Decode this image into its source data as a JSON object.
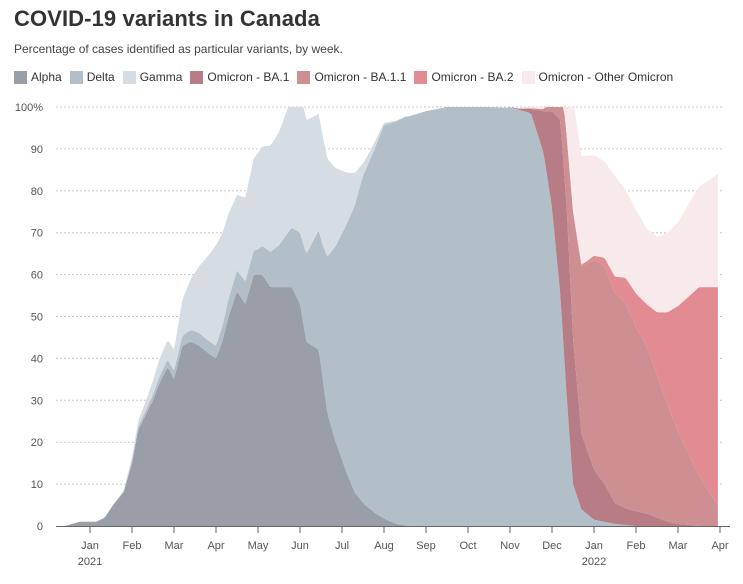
{
  "chart_data": {
    "type": "area",
    "title": "COVID-19 variants in Canada",
    "subtitle": "Percentage of cases identified as particular variants, by week.",
    "xlabel": "",
    "ylabel": "",
    "ylim": [
      0,
      100
    ],
    "xlim": [
      -0.9,
      14.95
    ],
    "y_ticks": [
      0,
      10,
      20,
      30,
      40,
      50,
      60,
      70,
      80,
      90,
      100
    ],
    "y_tick_labels": [
      "0",
      "10",
      "20",
      "30",
      "40",
      "50",
      "60",
      "70",
      "80",
      "90",
      "100%"
    ],
    "x_ticks": [
      {
        "t": 0,
        "label": "Jan",
        "year": "2021"
      },
      {
        "t": 1,
        "label": "Feb"
      },
      {
        "t": 2,
        "label": "Mar"
      },
      {
        "t": 3,
        "label": "Apr"
      },
      {
        "t": 4,
        "label": "May"
      },
      {
        "t": 5,
        "label": "Jun"
      },
      {
        "t": 6,
        "label": "Jul"
      },
      {
        "t": 7,
        "label": "Aug"
      },
      {
        "t": 8,
        "label": "Sep"
      },
      {
        "t": 9,
        "label": "Oct"
      },
      {
        "t": 10,
        "label": "Nov"
      },
      {
        "t": 11,
        "label": "Dec"
      },
      {
        "t": 12,
        "label": "Jan",
        "year": "2022"
      },
      {
        "t": 13,
        "label": "Feb"
      },
      {
        "t": 14,
        "label": "Mar"
      },
      {
        "t": 15,
        "label": "Apr"
      }
    ],
    "time_unit": "months since Jan 2021",
    "stacking": "cumulative",
    "series": [
      {
        "name": "Alpha",
        "color": "#9a9ea6",
        "points": [
          [
            -0.9,
            0
          ],
          [
            -0.6,
            0
          ],
          [
            -0.25,
            1
          ],
          [
            0.15,
            1
          ],
          [
            0.35,
            2
          ],
          [
            0.55,
            5
          ],
          [
            0.8,
            8
          ],
          [
            1.0,
            15
          ],
          [
            1.15,
            23
          ],
          [
            1.3,
            26
          ],
          [
            1.5,
            30
          ],
          [
            1.65,
            34
          ],
          [
            1.85,
            38
          ],
          [
            2.0,
            35
          ],
          [
            2.2,
            43
          ],
          [
            2.4,
            44
          ],
          [
            2.6,
            43
          ],
          [
            2.85,
            41
          ],
          [
            3.0,
            40
          ],
          [
            3.15,
            44
          ],
          [
            3.3,
            50
          ],
          [
            3.5,
            56
          ],
          [
            3.7,
            53
          ],
          [
            3.9,
            60
          ],
          [
            4.1,
            60
          ],
          [
            4.3,
            57
          ],
          [
            4.6,
            57
          ],
          [
            4.8,
            57
          ],
          [
            5.0,
            53
          ],
          [
            5.15,
            44
          ],
          [
            5.3,
            43
          ],
          [
            5.45,
            42
          ],
          [
            5.65,
            27
          ],
          [
            5.85,
            20
          ],
          [
            6.1,
            13
          ],
          [
            6.3,
            8
          ],
          [
            6.55,
            5
          ],
          [
            6.8,
            3
          ],
          [
            7.05,
            1.5
          ],
          [
            7.3,
            0.5
          ],
          [
            7.6,
            0
          ],
          [
            14.95,
            0
          ]
        ]
      },
      {
        "name": "Delta",
        "color": "#b2bec8",
        "points": [
          [
            -0.9,
            0
          ],
          [
            0.5,
            0
          ],
          [
            1.0,
            0.5
          ],
          [
            1.6,
            1.5
          ],
          [
            2.0,
            2
          ],
          [
            2.5,
            3
          ],
          [
            3.0,
            3
          ],
          [
            3.5,
            5
          ],
          [
            4.0,
            6
          ],
          [
            4.5,
            10
          ],
          [
            5.0,
            17
          ],
          [
            5.5,
            30
          ],
          [
            6.0,
            54
          ],
          [
            6.5,
            78
          ],
          [
            7.0,
            94
          ],
          [
            7.5,
            97.5
          ],
          [
            8.0,
            99
          ],
          [
            8.5,
            100
          ],
          [
            9.5,
            100
          ],
          [
            10.1,
            99.7
          ],
          [
            10.5,
            98.5
          ],
          [
            10.8,
            89
          ],
          [
            11.0,
            76
          ],
          [
            11.2,
            55
          ],
          [
            11.35,
            31
          ],
          [
            11.5,
            10
          ],
          [
            11.7,
            4
          ],
          [
            12.0,
            1.5
          ],
          [
            12.5,
            0.5
          ],
          [
            13.0,
            0
          ],
          [
            14.95,
            0
          ]
        ]
      },
      {
        "name": "Gamma",
        "color": "#d5dde3",
        "points": [
          [
            -0.9,
            0
          ],
          [
            0.8,
            0
          ],
          [
            1.0,
            1
          ],
          [
            1.3,
            2
          ],
          [
            1.6,
            4
          ],
          [
            2.0,
            5
          ],
          [
            2.5,
            14
          ],
          [
            3.0,
            24
          ],
          [
            3.5,
            18
          ],
          [
            4.0,
            23
          ],
          [
            4.5,
            27
          ],
          [
            5.0,
            34
          ],
          [
            5.5,
            27
          ],
          [
            6.0,
            15
          ],
          [
            6.5,
            3
          ],
          [
            7.0,
            0.5
          ],
          [
            7.5,
            0
          ],
          [
            14.95,
            0
          ]
        ]
      },
      {
        "name": "Omicron - BA.1",
        "color": "#b87c86",
        "points": [
          [
            -0.9,
            0
          ],
          [
            9.8,
            0
          ],
          [
            10.2,
            0.2
          ],
          [
            10.5,
            1
          ],
          [
            10.8,
            10
          ],
          [
            11.0,
            23
          ],
          [
            11.2,
            42
          ],
          [
            11.35,
            45
          ],
          [
            11.5,
            35
          ],
          [
            11.7,
            18
          ],
          [
            12.0,
            12
          ],
          [
            12.25,
            9
          ],
          [
            12.5,
            5
          ],
          [
            12.75,
            4
          ],
          [
            13.0,
            3.5
          ],
          [
            13.25,
            3
          ],
          [
            13.5,
            2
          ],
          [
            13.75,
            1
          ],
          [
            14.0,
            0.5
          ],
          [
            14.5,
            0
          ],
          [
            14.95,
            0
          ]
        ]
      },
      {
        "name": "Omicron - BA.1.1",
        "color": "#cd8f91",
        "points": [
          [
            -0.9,
            0
          ],
          [
            10.1,
            0
          ],
          [
            10.5,
            0.2
          ],
          [
            10.8,
            0.5
          ],
          [
            11.0,
            3
          ],
          [
            11.2,
            12
          ],
          [
            11.35,
            17
          ],
          [
            11.5,
            30
          ],
          [
            11.7,
            40
          ],
          [
            12.0,
            50
          ],
          [
            12.25,
            52
          ],
          [
            12.5,
            50
          ],
          [
            12.75,
            49
          ],
          [
            13.0,
            44
          ],
          [
            13.25,
            40
          ],
          [
            13.5,
            34
          ],
          [
            13.75,
            28
          ],
          [
            14.0,
            22
          ],
          [
            14.5,
            12
          ],
          [
            14.95,
            5
          ]
        ]
      },
      {
        "name": "Omicron - BA.2",
        "color": "#e38b92",
        "points": [
          [
            -0.9,
            0
          ],
          [
            11.3,
            0
          ],
          [
            11.5,
            0.2
          ],
          [
            11.8,
            0.5
          ],
          [
            12.0,
            1
          ],
          [
            12.25,
            2
          ],
          [
            12.5,
            4
          ],
          [
            12.75,
            6
          ],
          [
            13.0,
            8
          ],
          [
            13.25,
            10
          ],
          [
            13.5,
            15
          ],
          [
            13.75,
            22
          ],
          [
            14.0,
            30
          ],
          [
            14.5,
            45
          ],
          [
            14.95,
            52
          ]
        ]
      },
      {
        "name": "Omicron - Other Omicron",
        "color": "#f8e9ea",
        "points": [
          [
            -0.9,
            0
          ],
          [
            10.1,
            0
          ],
          [
            10.5,
            0.4
          ],
          [
            10.8,
            1
          ],
          [
            11.0,
            10
          ],
          [
            11.2,
            24
          ],
          [
            11.35,
            26
          ],
          [
            11.5,
            27
          ],
          [
            11.7,
            26
          ],
          [
            12.0,
            24
          ],
          [
            12.25,
            23
          ],
          [
            12.5,
            24
          ],
          [
            12.75,
            21
          ],
          [
            13.0,
            20
          ],
          [
            13.25,
            18
          ],
          [
            13.5,
            18
          ],
          [
            13.75,
            19
          ],
          [
            14.0,
            20
          ],
          [
            14.5,
            24
          ],
          [
            14.95,
            27
          ]
        ]
      }
    ]
  }
}
